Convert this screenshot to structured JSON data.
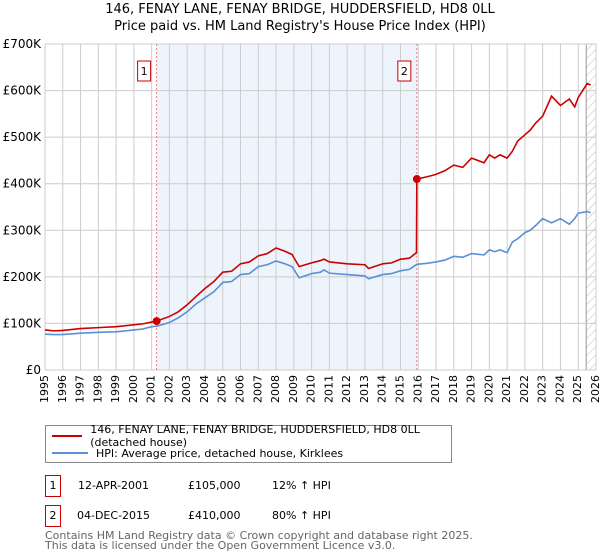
{
  "title": "146, FENAY LANE, FENAY BRIDGE, HUDDERSFIELD, HD8 0LL",
  "subtitle": "Price paid vs. HM Land Registry's House Price Index (HPI)",
  "chart_data": {
    "type": "line",
    "xlim": [
      1995,
      2026
    ],
    "ylim": [
      0,
      700000
    ],
    "y_ticks": [
      0,
      100000,
      200000,
      300000,
      400000,
      500000,
      600000,
      700000
    ],
    "y_tick_labels": [
      "£0",
      "£100K",
      "£200K",
      "£300K",
      "£400K",
      "£500K",
      "£600K",
      "£700K"
    ],
    "x_ticks": [
      1995,
      1996,
      1997,
      1998,
      1999,
      2000,
      2001,
      2002,
      2003,
      2004,
      2005,
      2006,
      2007,
      2008,
      2009,
      2010,
      2011,
      2012,
      2013,
      2014,
      2015,
      2016,
      2017,
      2018,
      2019,
      2020,
      2021,
      2022,
      2023,
      2024,
      2025,
      2026
    ],
    "grid": true,
    "shaded_range": [
      2001.28,
      2015.92
    ],
    "forecast_hatch_from": 2025.45,
    "series": [
      {
        "name": "146, FENAY LANE, FENAY BRIDGE, HUDDERSFIELD, HD8 0LL (detached house)",
        "color": "#cc0000",
        "x": [
          1995,
          1995.5,
          1996,
          1997,
          1998,
          1999,
          2000,
          2000.5,
          2001,
          2001.28,
          2002,
          2002.5,
          2003,
          2003.5,
          2004,
          2004.5,
          2005,
          2005.5,
          2006,
          2006.5,
          2007,
          2007.5,
          2008,
          2008.5,
          2008.9,
          2009.3,
          2010,
          2010.5,
          2010.7,
          2011,
          2012,
          2013,
          2013.2,
          2014,
          2014.5,
          2015,
          2015.5,
          2015.9,
          2015.92,
          2016.5,
          2017,
          2017.5,
          2018,
          2018.5,
          2019,
          2019.7,
          2020,
          2020.3,
          2020.6,
          2021,
          2021.3,
          2021.6,
          2022,
          2022.3,
          2022.6,
          2023,
          2023.5,
          2024,
          2024.5,
          2024.8,
          2025,
          2025.5,
          2025.7
        ],
        "y": [
          86000,
          84000,
          85000,
          89000,
          91000,
          93000,
          97000,
          99000,
          103000,
          105000,
          115000,
          125000,
          140000,
          158000,
          175000,
          190000,
          210000,
          212000,
          228000,
          232000,
          245000,
          250000,
          262000,
          255000,
          248000,
          222000,
          230000,
          235000,
          238000,
          232000,
          228000,
          226000,
          218000,
          228000,
          230000,
          238000,
          240000,
          252000,
          410000,
          415000,
          420000,
          428000,
          440000,
          435000,
          455000,
          445000,
          462000,
          455000,
          462000,
          455000,
          470000,
          492000,
          505000,
          515000,
          530000,
          545000,
          588000,
          568000,
          582000,
          565000,
          585000,
          615000,
          612000
        ]
      },
      {
        "name": "HPI: Average price, detached house, Kirklees",
        "color": "#5b8fd6",
        "x": [
          1995,
          1995.5,
          1996,
          1997,
          1998,
          1999,
          2000,
          2000.5,
          2001,
          2001.28,
          2002,
          2002.5,
          2003,
          2003.5,
          2004,
          2004.5,
          2005,
          2005.5,
          2006,
          2006.5,
          2007,
          2007.5,
          2008,
          2008.5,
          2008.9,
          2009.3,
          2010,
          2010.5,
          2010.7,
          2011,
          2012,
          2013,
          2013.2,
          2014,
          2014.5,
          2015,
          2015.5,
          2015.92,
          2016.5,
          2017,
          2017.5,
          2018,
          2018.5,
          2019,
          2019.7,
          2020,
          2020.3,
          2020.6,
          2021,
          2021.3,
          2021.6,
          2022,
          2022.3,
          2022.6,
          2023,
          2023.5,
          2024,
          2024.5,
          2024.8,
          2025,
          2025.5,
          2025.7
        ],
        "y": [
          77000,
          76000,
          76000,
          79000,
          81000,
          82000,
          86000,
          88000,
          93000,
          94000,
          102000,
          112000,
          125000,
          142000,
          155000,
          168000,
          188000,
          190000,
          205000,
          207000,
          222000,
          226000,
          234000,
          228000,
          222000,
          198000,
          207000,
          210000,
          215000,
          208000,
          205000,
          202000,
          196000,
          205000,
          207000,
          213000,
          216000,
          227000,
          229000,
          232000,
          236000,
          244000,
          242000,
          250000,
          247000,
          258000,
          254000,
          258000,
          252000,
          275000,
          282000,
          295000,
          300000,
          310000,
          325000,
          316000,
          325000,
          313000,
          325000,
          337000,
          340000,
          338000
        ]
      }
    ],
    "markers": [
      {
        "label": "1",
        "x": 2001.28,
        "y": 105000
      },
      {
        "label": "2",
        "x": 2015.92,
        "y": 410000
      }
    ]
  },
  "legend": {
    "property": "146, FENAY LANE, FENAY BRIDGE, HUDDERSFIELD, HD8 0LL (detached house)",
    "hpi": "HPI: Average price, detached house, Kirklees"
  },
  "transactions": [
    {
      "num": "1",
      "date": "12-APR-2001",
      "price": "£105,000",
      "hpi": "12% ↑ HPI"
    },
    {
      "num": "2",
      "date": "04-DEC-2015",
      "price": "£410,000",
      "hpi": "80% ↑ HPI"
    }
  ],
  "footer": {
    "line1": "Contains HM Land Registry data © Crown copyright and database right 2025.",
    "line2": "This data is licensed under the Open Government Licence v3.0."
  }
}
